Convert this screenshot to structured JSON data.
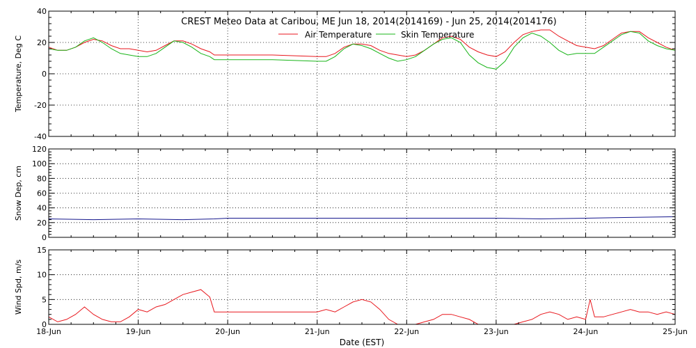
{
  "chart_data": {
    "type": "line",
    "title": "CREST Meteo Data at Caribou, ME   Jun 18, 2014(2014169) - Jun 25, 2014(2014176)",
    "xlabel": "Date (EST)",
    "x_ticks": [
      "18-Jun",
      "19-Jun",
      "20-Jun",
      "21-Jun",
      "22-Jun",
      "23-Jun",
      "24-Jun",
      "25-Jun"
    ],
    "xlim": [
      0,
      7
    ],
    "grid": true,
    "colors": {
      "air": "#e8161c",
      "skin": "#18b418",
      "snow": "#14168c",
      "wind": "#e8161c"
    },
    "panels": [
      {
        "ylabel": "Temperature, Deg C",
        "ylim": [
          -40,
          40
        ],
        "y_ticks": [
          -40,
          -20,
          0,
          20,
          40
        ],
        "legend_position": "top",
        "series": [
          {
            "name": "Air Temperature",
            "x": [
              0,
              0.1,
              0.2,
              0.3,
              0.4,
              0.5,
              0.6,
              0.7,
              0.8,
              0.9,
              1.0,
              1.1,
              1.2,
              1.3,
              1.4,
              1.5,
              1.6,
              1.7,
              1.8,
              1.85,
              2.0,
              2.5,
              3.0,
              3.1,
              3.2,
              3.3,
              3.4,
              3.5,
              3.6,
              3.7,
              3.8,
              3.9,
              4.0,
              4.1,
              4.2,
              4.3,
              4.4,
              4.5,
              4.6,
              4.7,
              4.8,
              4.9,
              5.0,
              5.1,
              5.2,
              5.3,
              5.4,
              5.5,
              5.6,
              5.7,
              5.8,
              5.9,
              6.0,
              6.1,
              6.2,
              6.3,
              6.4,
              6.5,
              6.6,
              6.7,
              6.8,
              6.9,
              7.0
            ],
            "values": [
              17,
              15,
              15,
              17,
              20,
              22,
              21,
              18,
              16,
              16,
              15,
              14,
              15,
              18,
              21,
              21,
              19,
              16,
              14,
              12,
              12,
              12,
              11,
              11,
              13,
              17,
              19,
              19,
              18,
              15,
              13,
              12,
              11,
              12,
              15,
              19,
              23,
              24,
              22,
              17,
              14,
              12,
              11,
              14,
              20,
              25,
              27,
              28,
              28,
              24,
              21,
              18,
              17,
              16,
              18,
              22,
              26,
              27,
              27,
              23,
              20,
              17,
              15
            ]
          },
          {
            "name": "Skin Temperature",
            "x": [
              0,
              0.1,
              0.2,
              0.3,
              0.4,
              0.5,
              0.6,
              0.7,
              0.8,
              0.9,
              1.0,
              1.1,
              1.2,
              1.3,
              1.4,
              1.5,
              1.6,
              1.7,
              1.8,
              1.85,
              2.0,
              2.5,
              3.0,
              3.1,
              3.2,
              3.3,
              3.4,
              3.5,
              3.6,
              3.7,
              3.8,
              3.9,
              4.0,
              4.1,
              4.2,
              4.3,
              4.4,
              4.5,
              4.6,
              4.7,
              4.8,
              4.9,
              5.0,
              5.1,
              5.2,
              5.3,
              5.4,
              5.5,
              5.6,
              5.7,
              5.8,
              5.9,
              6.0,
              6.1,
              6.2,
              6.3,
              6.4,
              6.5,
              6.6,
              6.7,
              6.8,
              6.9,
              7.0
            ],
            "values": [
              16,
              15,
              15,
              17,
              21,
              23,
              20,
              16,
              13,
              12,
              11,
              11,
              13,
              17,
              21,
              20,
              17,
              13,
              11,
              9,
              9,
              9,
              8,
              8,
              11,
              16,
              19,
              18,
              16,
              13,
              10,
              8,
              9,
              11,
              15,
              19,
              22,
              23,
              20,
              12,
              7,
              4,
              3,
              8,
              17,
              23,
              26,
              24,
              20,
              15,
              12,
              13,
              13,
              13,
              17,
              21,
              25,
              27,
              26,
              21,
              18,
              16,
              15
            ]
          }
        ]
      },
      {
        "ylabel": "Snow Dep, cm",
        "ylim": [
          0,
          120
        ],
        "y_ticks": [
          0,
          20,
          40,
          60,
          80,
          100,
          120
        ],
        "series": [
          {
            "name": "",
            "x": [
              0,
              0.5,
              1.0,
              1.5,
              1.85,
              2.0,
              2.5,
              3.0,
              3.5,
              4.0,
              4.5,
              5.0,
              5.5,
              6.0,
              6.5,
              7.0
            ],
            "values": [
              25,
              24,
              25,
              24,
              25,
              26,
              26,
              26,
              26,
              26,
              26,
              26,
              25,
              26,
              27,
              28
            ]
          }
        ]
      },
      {
        "ylabel": "Wind Spd, m/s",
        "ylim": [
          0,
          15
        ],
        "y_ticks": [
          0,
          5,
          10,
          15
        ],
        "series": [
          {
            "name": "",
            "x": [
              0,
              0.1,
              0.2,
              0.3,
              0.4,
              0.5,
              0.6,
              0.7,
              0.8,
              0.9,
              1.0,
              1.1,
              1.2,
              1.3,
              1.4,
              1.5,
              1.6,
              1.7,
              1.8,
              1.85,
              2.0,
              2.5,
              3.0,
              3.1,
              3.2,
              3.3,
              3.4,
              3.5,
              3.6,
              3.7,
              3.8,
              3.9,
              4.0,
              4.1,
              4.2,
              4.3,
              4.4,
              4.5,
              4.6,
              4.7,
              4.8,
              4.9,
              5.0,
              5.1,
              5.2,
              5.3,
              5.4,
              5.5,
              5.6,
              5.7,
              5.8,
              5.9,
              6.0,
              6.05,
              6.1,
              6.2,
              6.3,
              6.4,
              6.5,
              6.6,
              6.7,
              6.8,
              6.9,
              7.0
            ],
            "values": [
              1.5,
              0.5,
              1.0,
              2.0,
              3.5,
              2.0,
              1.0,
              0.5,
              0.5,
              1.5,
              3.0,
              2.5,
              3.5,
              4.0,
              5.0,
              6.0,
              6.5,
              7.0,
              5.5,
              2.5,
              2.5,
              2.5,
              2.5,
              3.0,
              2.5,
              3.5,
              4.5,
              5.0,
              4.5,
              3.0,
              1.0,
              0.0,
              0.0,
              0.0,
              0.5,
              1.0,
              2.0,
              2.0,
              1.5,
              1.0,
              0.0,
              0.0,
              0.0,
              0.0,
              0.0,
              0.5,
              1.0,
              2.0,
              2.5,
              2.0,
              1.0,
              1.5,
              1.0,
              5.0,
              1.5,
              1.5,
              2.0,
              2.5,
              3.0,
              2.5,
              2.5,
              2.0,
              2.5,
              2.0
            ]
          }
        ]
      }
    ]
  }
}
